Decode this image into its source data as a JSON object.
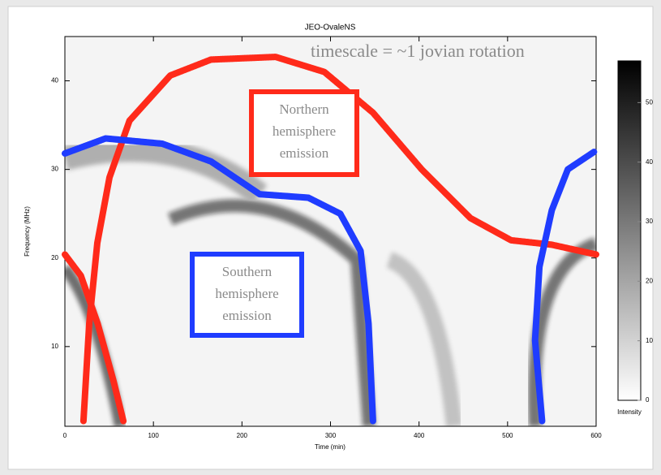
{
  "chart_data": {
    "type": "spectrogram",
    "title": "JEO-OvaleNS",
    "x_label": "Time (min)",
    "y_label": "Frequency (MHz)",
    "xlim": [
      0,
      600
    ],
    "ylim": [
      1,
      45
    ],
    "xticks": [
      0,
      100,
      200,
      300,
      400,
      500,
      600
    ],
    "yticks": [
      10,
      20,
      30,
      40
    ],
    "colorbar": {
      "label": "Intensity",
      "lim": [
        0,
        57
      ],
      "ticks": [
        0,
        10,
        20,
        30,
        40,
        50
      ]
    },
    "curves": [
      {
        "color": "#ff2a1a",
        "x": [
          21,
          27.5,
          36.6,
          50.4,
          73,
          119,
          165,
          238,
          293,
          348,
          403,
          458,
          504,
          550,
          600
        ],
        "y": [
          1.6,
          12.6,
          21.7,
          29.1,
          35.5,
          40.6,
          42.4,
          42.7,
          41,
          36.4,
          30,
          24.5,
          22,
          21.5,
          20.4
        ]
      },
      {
        "color": "#ff2a1a",
        "x": [
          0,
          18,
          37,
          55,
          66
        ],
        "y": [
          20.4,
          18,
          12.6,
          6.1,
          1.6
        ]
      },
      {
        "color": "#1f3cff",
        "x": [
          0,
          46,
          110,
          165,
          220,
          275,
          311,
          334,
          343,
          348
        ],
        "y": [
          31.8,
          33.5,
          32.9,
          30.9,
          27.2,
          26.8,
          25,
          20.8,
          12.6,
          1.6
        ]
      },
      {
        "color": "#1f3cff",
        "x": [
          539,
          531,
          536,
          550,
          568,
          598
        ],
        "y": [
          1.6,
          10.7,
          19,
          25.4,
          30,
          32
        ]
      }
    ],
    "annotations": [
      {
        "lines": [
          "timescale = ~1 jovian rotation"
        ]
      },
      {
        "lines": [
          "Northern",
          "hemisphere",
          "emission"
        ],
        "color": "#ff2a1a"
      },
      {
        "lines": [
          "Southern",
          "hemisphere",
          "emission"
        ],
        "color": "#1f3cff"
      }
    ]
  }
}
